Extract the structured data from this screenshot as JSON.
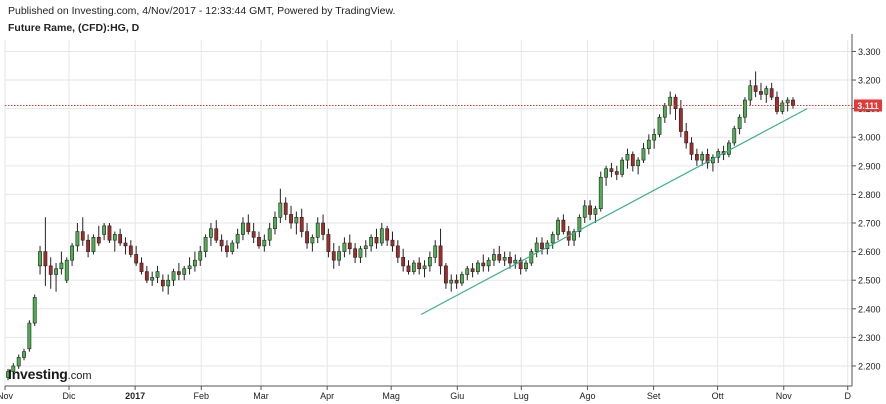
{
  "header": {
    "published": "Published on Investing.com, 4/Nov/2017 - 12:33:44 GMT, Powered by TradingView.",
    "symbol": "Future Rame, (CFD):HG, D"
  },
  "logo": {
    "brand": "Investing",
    "tld": ".com"
  },
  "colors": {
    "up": "#4caf50",
    "down": "#a52a2a",
    "trendline": "#3cb08a",
    "price_line": "#e53935",
    "price_tag": "#e53935",
    "grid": "#e6e6e6"
  },
  "chart_data": {
    "type": "candlestick",
    "ylim": [
      2.13,
      3.34
    ],
    "yticks": [
      2.2,
      2.3,
      2.4,
      2.5,
      2.6,
      2.7,
      2.8,
      2.9,
      3.0,
      3.1,
      3.2,
      3.3
    ],
    "ytick_labels": [
      "2.200",
      "2.300",
      "2.400",
      "2.500",
      "2.600",
      "2.700",
      "2.800",
      "2.900",
      "3.000",
      "3.100",
      "3.200",
      "3.300"
    ],
    "xlim": [
      "2016-11-01",
      "2017-12-03"
    ],
    "xticks": [
      {
        "date": "2016-11-01",
        "label": "Nov"
      },
      {
        "date": "2016-12-01",
        "label": "Dic"
      },
      {
        "date": "2017-01-01",
        "label": "2017"
      },
      {
        "date": "2017-02-01",
        "label": "Feb"
      },
      {
        "date": "2017-03-01",
        "label": "Mar"
      },
      {
        "date": "2017-04-01",
        "label": "Apr"
      },
      {
        "date": "2017-05-01",
        "label": "Mag"
      },
      {
        "date": "2017-06-01",
        "label": "Giu"
      },
      {
        "date": "2017-07-01",
        "label": "Lug"
      },
      {
        "date": "2017-08-01",
        "label": "Ago"
      },
      {
        "date": "2017-09-01",
        "label": "Set"
      },
      {
        "date": "2017-10-01",
        "label": "Ott"
      },
      {
        "date": "2017-11-01",
        "label": "Nov"
      },
      {
        "date": "2017-12-01",
        "label": "D"
      }
    ],
    "last_price": 3.111,
    "last_price_label": "3.111",
    "trendline": [
      {
        "date": "2017-05-15",
        "value": 2.38
      },
      {
        "date": "2017-11-12",
        "value": 3.1
      }
    ],
    "series": [
      {
        "values": [
          [
            2.16,
            2.19,
            2.15,
            2.18
          ],
          [
            2.18,
            2.21,
            2.17,
            2.2
          ],
          [
            2.2,
            2.24,
            2.19,
            2.23
          ],
          [
            2.23,
            2.26,
            2.22,
            2.25
          ],
          [
            2.26,
            2.36,
            2.25,
            2.35
          ],
          [
            2.35,
            2.45,
            2.34,
            2.44
          ],
          [
            2.55,
            2.62,
            2.52,
            2.6
          ],
          [
            2.6,
            2.72,
            2.48,
            2.55
          ],
          [
            2.55,
            2.58,
            2.47,
            2.52
          ],
          [
            2.52,
            2.56,
            2.46,
            2.54
          ],
          [
            2.54,
            2.6,
            2.52,
            2.56
          ],
          [
            2.5,
            2.58,
            2.49,
            2.57
          ],
          [
            2.57,
            2.63,
            2.55,
            2.62
          ],
          [
            2.62,
            2.7,
            2.6,
            2.67
          ],
          [
            2.67,
            2.72,
            2.62,
            2.64
          ],
          [
            2.64,
            2.66,
            2.58,
            2.6
          ],
          [
            2.6,
            2.66,
            2.59,
            2.65
          ],
          [
            2.65,
            2.69,
            2.62,
            2.63
          ],
          [
            2.66,
            2.7,
            2.64,
            2.69
          ],
          [
            2.69,
            2.7,
            2.63,
            2.64
          ],
          [
            2.64,
            2.67,
            2.6,
            2.66
          ],
          [
            2.66,
            2.68,
            2.62,
            2.63
          ],
          [
            2.63,
            2.65,
            2.59,
            2.62
          ],
          [
            2.62,
            2.64,
            2.58,
            2.59
          ],
          [
            2.59,
            2.62,
            2.55,
            2.56
          ],
          [
            2.56,
            2.58,
            2.52,
            2.53
          ],
          [
            2.53,
            2.55,
            2.49,
            2.5
          ],
          [
            2.5,
            2.53,
            2.48,
            2.51
          ],
          [
            2.51,
            2.55,
            2.49,
            2.53
          ],
          [
            2.5,
            2.52,
            2.46,
            2.48
          ],
          [
            2.48,
            2.52,
            2.45,
            2.5
          ],
          [
            2.5,
            2.54,
            2.48,
            2.53
          ],
          [
            2.53,
            2.56,
            2.5,
            2.52
          ],
          [
            2.52,
            2.55,
            2.5,
            2.54
          ],
          [
            2.54,
            2.58,
            2.52,
            2.55
          ],
          [
            2.55,
            2.6,
            2.53,
            2.57
          ],
          [
            2.57,
            2.62,
            2.55,
            2.6
          ],
          [
            2.6,
            2.66,
            2.58,
            2.65
          ],
          [
            2.65,
            2.7,
            2.62,
            2.68
          ],
          [
            2.68,
            2.71,
            2.63,
            2.64
          ],
          [
            2.64,
            2.66,
            2.6,
            2.62
          ],
          [
            2.62,
            2.64,
            2.58,
            2.6
          ],
          [
            2.6,
            2.64,
            2.59,
            2.63
          ],
          [
            2.63,
            2.68,
            2.61,
            2.66
          ],
          [
            2.66,
            2.72,
            2.64,
            2.7
          ],
          [
            2.7,
            2.73,
            2.66,
            2.67
          ],
          [
            2.67,
            2.7,
            2.63,
            2.65
          ],
          [
            2.65,
            2.67,
            2.61,
            2.62
          ],
          [
            2.62,
            2.66,
            2.6,
            2.64
          ],
          [
            2.64,
            2.7,
            2.62,
            2.68
          ],
          [
            2.68,
            2.74,
            2.66,
            2.72
          ],
          [
            2.72,
            2.82,
            2.7,
            2.77
          ],
          [
            2.77,
            2.79,
            2.71,
            2.73
          ],
          [
            2.73,
            2.76,
            2.68,
            2.7
          ],
          [
            2.7,
            2.74,
            2.66,
            2.72
          ],
          [
            2.72,
            2.75,
            2.65,
            2.67
          ],
          [
            2.67,
            2.7,
            2.61,
            2.63
          ],
          [
            2.63,
            2.66,
            2.6,
            2.65
          ],
          [
            2.65,
            2.72,
            2.63,
            2.7
          ],
          [
            2.7,
            2.73,
            2.64,
            2.66
          ],
          [
            2.66,
            2.68,
            2.58,
            2.6
          ],
          [
            2.6,
            2.63,
            2.54,
            2.57
          ],
          [
            2.57,
            2.62,
            2.55,
            2.6
          ],
          [
            2.6,
            2.65,
            2.58,
            2.63
          ],
          [
            2.63,
            2.66,
            2.59,
            2.61
          ],
          [
            2.61,
            2.63,
            2.56,
            2.58
          ],
          [
            2.58,
            2.62,
            2.56,
            2.61
          ],
          [
            2.61,
            2.64,
            2.58,
            2.62
          ],
          [
            2.62,
            2.66,
            2.6,
            2.65
          ],
          [
            2.65,
            2.68,
            2.61,
            2.63
          ],
          [
            2.63,
            2.7,
            2.62,
            2.68
          ],
          [
            2.68,
            2.69,
            2.62,
            2.64
          ],
          [
            2.64,
            2.67,
            2.6,
            2.62
          ],
          [
            2.62,
            2.64,
            2.56,
            2.58
          ],
          [
            2.58,
            2.61,
            2.53,
            2.55
          ],
          [
            2.55,
            2.57,
            2.52,
            2.53
          ],
          [
            2.53,
            2.57,
            2.52,
            2.56
          ],
          [
            2.56,
            2.58,
            2.52,
            2.54
          ],
          [
            2.54,
            2.57,
            2.51,
            2.55
          ],
          [
            2.55,
            2.6,
            2.53,
            2.58
          ],
          [
            2.58,
            2.64,
            2.56,
            2.62
          ],
          [
            2.62,
            2.68,
            2.52,
            2.55
          ],
          [
            2.55,
            2.56,
            2.47,
            2.49
          ],
          [
            2.49,
            2.52,
            2.46,
            2.5
          ],
          [
            2.5,
            2.52,
            2.47,
            2.49
          ],
          [
            2.49,
            2.53,
            2.48,
            2.52
          ],
          [
            2.52,
            2.55,
            2.5,
            2.54
          ],
          [
            2.54,
            2.56,
            2.51,
            2.53
          ],
          [
            2.53,
            2.57,
            2.52,
            2.56
          ],
          [
            2.56,
            2.59,
            2.53,
            2.55
          ],
          [
            2.55,
            2.58,
            2.53,
            2.57
          ],
          [
            2.57,
            2.61,
            2.55,
            2.59
          ],
          [
            2.59,
            2.62,
            2.56,
            2.57
          ],
          [
            2.57,
            2.6,
            2.55,
            2.58
          ],
          [
            2.58,
            2.6,
            2.54,
            2.56
          ],
          [
            2.56,
            2.59,
            2.54,
            2.57
          ],
          [
            2.57,
            2.58,
            2.52,
            2.54
          ],
          [
            2.54,
            2.57,
            2.53,
            2.56
          ],
          [
            2.56,
            2.61,
            2.55,
            2.6
          ],
          [
            2.6,
            2.65,
            2.58,
            2.63
          ],
          [
            2.63,
            2.65,
            2.59,
            2.61
          ],
          [
            2.61,
            2.64,
            2.59,
            2.63
          ],
          [
            2.63,
            2.67,
            2.61,
            2.66
          ],
          [
            2.66,
            2.72,
            2.64,
            2.71
          ],
          [
            2.71,
            2.73,
            2.66,
            2.67
          ],
          [
            2.67,
            2.69,
            2.62,
            2.64
          ],
          [
            2.64,
            2.68,
            2.62,
            2.67
          ],
          [
            2.67,
            2.73,
            2.65,
            2.72
          ],
          [
            2.72,
            2.78,
            2.7,
            2.76
          ],
          [
            2.76,
            2.78,
            2.71,
            2.73
          ],
          [
            2.73,
            2.76,
            2.7,
            2.75
          ],
          [
            2.75,
            2.88,
            2.74,
            2.86
          ],
          [
            2.86,
            2.9,
            2.83,
            2.89
          ],
          [
            2.89,
            2.91,
            2.86,
            2.88
          ],
          [
            2.88,
            2.9,
            2.85,
            2.87
          ],
          [
            2.87,
            2.93,
            2.86,
            2.92
          ],
          [
            2.92,
            2.96,
            2.89,
            2.94
          ],
          [
            2.94,
            2.95,
            2.88,
            2.9
          ],
          [
            2.9,
            2.93,
            2.87,
            2.92
          ],
          [
            2.92,
            2.98,
            2.91,
            2.96
          ],
          [
            2.96,
            3.01,
            2.94,
            2.99
          ],
          [
            2.99,
            3.03,
            2.96,
            3.01
          ],
          [
            3.01,
            3.08,
            3.0,
            3.07
          ],
          [
            3.07,
            3.12,
            3.05,
            3.11
          ],
          [
            3.11,
            3.16,
            3.08,
            3.14
          ],
          [
            3.14,
            3.15,
            3.06,
            3.1
          ],
          [
            3.1,
            3.13,
            3.0,
            3.02
          ],
          [
            3.02,
            3.05,
            2.96,
            2.98
          ],
          [
            2.98,
            3.0,
            2.92,
            2.94
          ],
          [
            2.94,
            2.96,
            2.9,
            2.92
          ],
          [
            2.92,
            2.95,
            2.9,
            2.94
          ],
          [
            2.94,
            2.96,
            2.89,
            2.91
          ],
          [
            2.91,
            2.94,
            2.88,
            2.93
          ],
          [
            2.93,
            2.96,
            2.91,
            2.95
          ],
          [
            2.95,
            2.97,
            2.92,
            2.94
          ],
          [
            2.94,
            2.99,
            2.93,
            2.98
          ],
          [
            2.98,
            3.04,
            2.97,
            3.03
          ],
          [
            3.03,
            3.08,
            3.01,
            3.07
          ],
          [
            3.07,
            3.14,
            3.05,
            3.13
          ],
          [
            3.13,
            3.2,
            3.11,
            3.18
          ],
          [
            3.18,
            3.23,
            3.14,
            3.16
          ],
          [
            3.16,
            3.19,
            3.13,
            3.15
          ],
          [
            3.15,
            3.18,
            3.12,
            3.17
          ],
          [
            3.17,
            3.19,
            3.13,
            3.14
          ],
          [
            3.14,
            3.16,
            3.08,
            3.09
          ],
          [
            3.09,
            3.13,
            3.08,
            3.12
          ],
          [
            3.12,
            3.14,
            3.09,
            3.13
          ],
          [
            3.13,
            3.14,
            3.1,
            3.111
          ]
        ]
      }
    ]
  }
}
